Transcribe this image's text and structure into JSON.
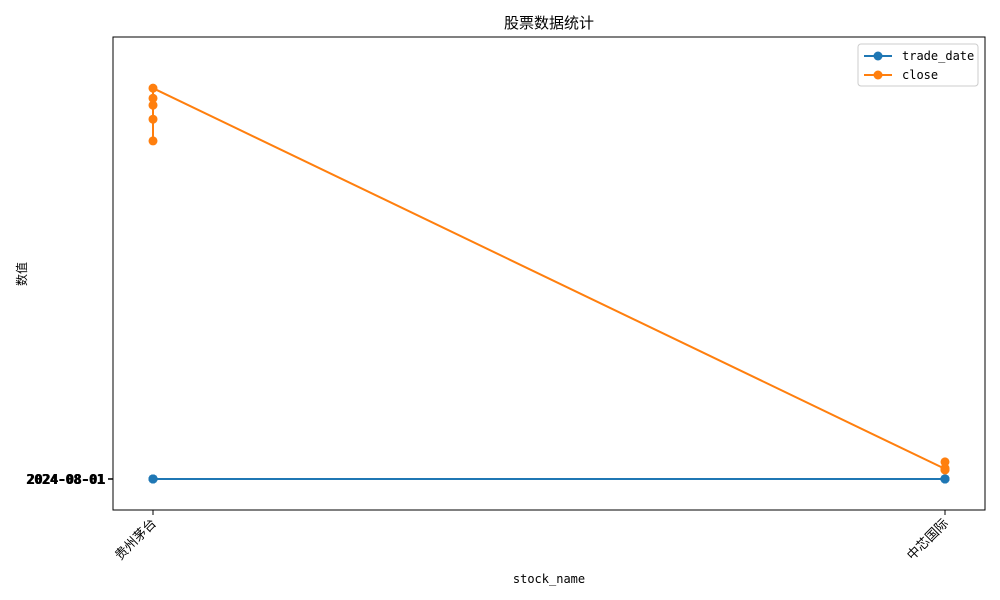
{
  "chart_data": {
    "type": "line",
    "title": "股票数据统计",
    "xlabel": "stock_name",
    "ylabel": "数值",
    "categories": [
      "贵州茅台",
      "中芯国际"
    ],
    "y_tick_label": "2024-08-01",
    "ylim": [
      -200,
      2850
    ],
    "grid": false,
    "legend_position": "top-right",
    "series": [
      {
        "name": "trade_date",
        "color": "#1f77b4",
        "points": [
          {
            "x": "贵州茅台",
            "y": 0
          },
          {
            "x": "贵州茅台",
            "y": 0
          },
          {
            "x": "贵州茅台",
            "y": 0
          },
          {
            "x": "贵州茅台",
            "y": 0
          },
          {
            "x": "贵州茅台",
            "y": 0
          },
          {
            "x": "中芯国际",
            "y": 0
          },
          {
            "x": "中芯国际",
            "y": 0
          },
          {
            "x": "中芯国际",
            "y": 0
          },
          {
            "x": "中芯国际",
            "y": 0
          },
          {
            "x": "中芯国际",
            "y": 0
          }
        ]
      },
      {
        "name": "close",
        "color": "#ff7f0e",
        "points": [
          {
            "x": "贵州茅台",
            "y": 2320
          },
          {
            "x": "贵州茅台",
            "y": 2410
          },
          {
            "x": "贵州茅台",
            "y": 2180
          },
          {
            "x": "贵州茅台",
            "y": 2455
          },
          {
            "x": "贵州茅台",
            "y": 2520
          },
          {
            "x": "中芯国际",
            "y": 65
          },
          {
            "x": "中芯国际",
            "y": 60
          },
          {
            "x": "中芯国际",
            "y": 70
          },
          {
            "x": "中芯国际",
            "y": 110
          },
          {
            "x": "中芯国际",
            "y": 58
          }
        ]
      }
    ]
  }
}
